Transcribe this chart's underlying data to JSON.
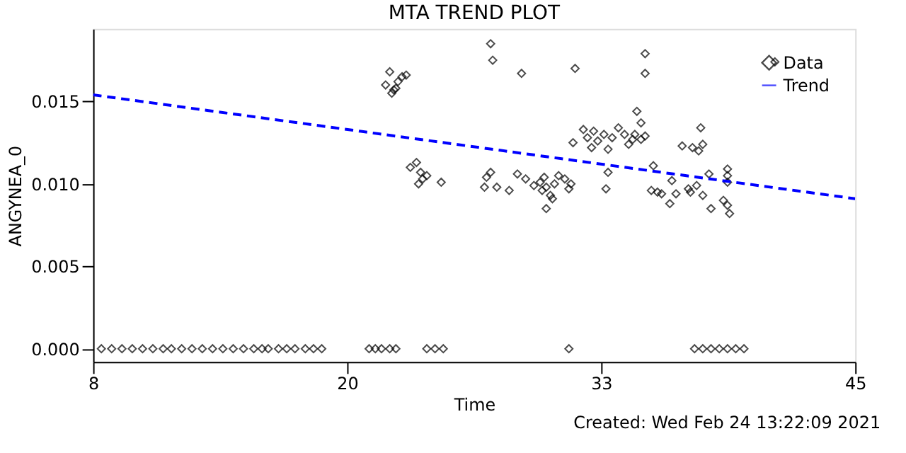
{
  "chart_data": {
    "type": "scatter",
    "title": "MTA TREND PLOT",
    "xlabel": "Time",
    "ylabel": "ANGYNEA_0",
    "annotations": [
      "Created: Wed Feb 24 13:22:09 2021"
    ],
    "xlim": [
      8,
      45
    ],
    "xticks": [
      8,
      {
        "value": 20.333,
        "label": "20"
      },
      {
        "value": 32.667,
        "label": "33"
      },
      45
    ],
    "ylim": [
      -0.0008,
      0.0194
    ],
    "yticks": [
      {
        "value": 0,
        "label": "0.000"
      },
      {
        "value": 0.005,
        "label": "0.005"
      },
      {
        "value": 0.01,
        "label": "0.010"
      },
      {
        "value": 0.015,
        "label": "0.015"
      }
    ],
    "grid": false,
    "legend": "top right",
    "series": [
      {
        "name": "Data",
        "marker": "diamond",
        "color": "#000000",
        "x": [
          8.4,
          8.9,
          9.4,
          9.9,
          10.4,
          10.9,
          11.4,
          11.8,
          12.3,
          12.8,
          13.3,
          13.8,
          14.3,
          14.8,
          15.3,
          15.8,
          16.2,
          16.5,
          17.0,
          17.4,
          17.8,
          18.3,
          18.7,
          19.1,
          21.4,
          21.7,
          22.0,
          22.4,
          22.7,
          24.2,
          24.6,
          25.0,
          31.1,
          37.2,
          37.6,
          38.0,
          38.4,
          38.8,
          39.2,
          39.6,
          22.2,
          22.4,
          22.6,
          22.8,
          23.0,
          23.2,
          22.5,
          22.7,
          27.3,
          27.4,
          28.8,
          31.4,
          23.4,
          23.7,
          23.9,
          24.0,
          24.2,
          24.9,
          23.8,
          27.1,
          27.3,
          27.0,
          27.6,
          28.2,
          28.6,
          29.0,
          29.4,
          29.7,
          29.8,
          30.0,
          30.2,
          30.0,
          30.4,
          30.6,
          30.9,
          31.1,
          31.2,
          29.9,
          30.3,
          31.3,
          31.8,
          32.0,
          32.3,
          32.5,
          32.8,
          33.2,
          33.5,
          33.8,
          34.0,
          33.0,
          32.2,
          34.2,
          33.0,
          32.9,
          34.8,
          34.8,
          41.1,
          34.4,
          34.6,
          34.3,
          34.6,
          34.8,
          37.5,
          36.6,
          37.1,
          37.6,
          37.4,
          35.2,
          35.1,
          35.6,
          36.0,
          35.4,
          36.3,
          36.1,
          36.9,
          37.3,
          37.6,
          37.0,
          37.9,
          38.0,
          38.8,
          38.8,
          38.8,
          38.6,
          38.8,
          38.9
        ],
        "values": [
          0,
          0,
          0,
          0,
          0,
          0,
          0,
          0,
          0,
          0,
          0,
          0,
          0,
          0,
          0,
          0,
          0,
          0,
          0,
          0,
          0,
          0,
          0,
          0,
          0,
          0,
          0,
          0,
          0,
          0,
          0,
          0,
          0,
          0,
          0,
          0,
          0,
          0,
          0,
          0,
          0.016,
          0.0168,
          0.0157,
          0.0162,
          0.0165,
          0.0166,
          0.0155,
          0.0158,
          0.0185,
          0.0175,
          0.0167,
          0.017,
          0.011,
          0.0113,
          0.0107,
          0.0103,
          0.0105,
          0.0101,
          0.01,
          0.0104,
          0.0107,
          0.0098,
          0.0098,
          0.0096,
          0.0106,
          0.0103,
          0.0099,
          0.0101,
          0.0096,
          0.0098,
          0.0093,
          0.0085,
          0.01,
          0.0105,
          0.0103,
          0.0097,
          0.01,
          0.0104,
          0.0091,
          0.0125,
          0.0133,
          0.0128,
          0.0132,
          0.0126,
          0.013,
          0.0128,
          0.0134,
          0.013,
          0.0124,
          0.0121,
          0.0122,
          0.0127,
          0.0107,
          0.0097,
          0.0179,
          0.0167,
          0.0174,
          0.0144,
          0.0137,
          0.013,
          0.0127,
          0.0129,
          0.0134,
          0.0123,
          0.0122,
          0.0124,
          0.012,
          0.0111,
          0.0096,
          0.0094,
          0.0088,
          0.0095,
          0.0094,
          0.0102,
          0.0097,
          0.0099,
          0.0093,
          0.0095,
          0.0106,
          0.0085,
          0.0109,
          0.0105,
          0.0101,
          0.009,
          0.0087,
          0.0082
        ]
      },
      {
        "name": "Trend",
        "type": "line",
        "marker": "none",
        "line_style": "dashed",
        "color": "#0000ff",
        "x": [
          8,
          45
        ],
        "values": [
          0.0154,
          0.0091
        ]
      }
    ]
  }
}
